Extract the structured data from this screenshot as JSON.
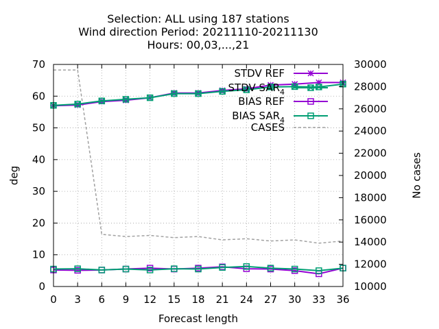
{
  "chart_data": {
    "type": "line",
    "title_lines": [
      "Selection: ALL using   187 stations",
      "Wind direction   Period: 20211110-20211130",
      "Hours:  00,03,...,21"
    ],
    "xlabel": "Forecast length",
    "ylabel": "deg",
    "y2label": "No cases",
    "x": [
      0,
      3,
      6,
      9,
      12,
      15,
      18,
      21,
      24,
      27,
      30,
      33,
      36
    ],
    "xlim": [
      0,
      36
    ],
    "xticks": [
      0,
      3,
      6,
      9,
      12,
      15,
      18,
      21,
      24,
      27,
      30,
      33,
      36
    ],
    "ylim": [
      0,
      70
    ],
    "yticks": [
      0,
      10,
      20,
      30,
      40,
      50,
      60,
      70
    ],
    "y2lim": [
      10000,
      30000
    ],
    "y2ticks": [
      10000,
      12000,
      14000,
      16000,
      18000,
      20000,
      22000,
      24000,
      26000,
      28000,
      30000
    ],
    "grid": true,
    "legend_position": "top-right",
    "series": [
      {
        "name": "STDV REF",
        "axis": "left",
        "color": "#9400d3",
        "marker": "star",
        "dash": "solid",
        "values": [
          57.0,
          57.2,
          58.3,
          58.7,
          59.5,
          61.0,
          61.0,
          61.8,
          62.3,
          63.5,
          63.8,
          64.3,
          64.3
        ]
      },
      {
        "name": "STDV SAR",
        "sub": "4",
        "axis": "left",
        "color": "#009e73",
        "marker": "box-x",
        "dash": "solid",
        "values": [
          57.1,
          57.5,
          58.5,
          59.0,
          59.5,
          60.8,
          60.8,
          61.5,
          62.0,
          62.9,
          63.0,
          62.9,
          63.8
        ]
      },
      {
        "name": "BIAS REF",
        "axis": "left",
        "color": "#9400d3",
        "marker": "square",
        "dash": "solid",
        "values": [
          5.2,
          5.1,
          5.2,
          5.5,
          5.8,
          5.5,
          5.8,
          6.2,
          5.6,
          5.5,
          5.0,
          4.0,
          5.8
        ]
      },
      {
        "name": "BIAS SAR",
        "sub": "4",
        "axis": "left",
        "color": "#009e73",
        "marker": "square",
        "dash": "solid",
        "values": [
          5.5,
          5.6,
          5.2,
          5.5,
          5.2,
          5.6,
          5.5,
          6.0,
          6.3,
          5.8,
          5.5,
          5.0,
          5.8
        ]
      },
      {
        "name": "CASES",
        "axis": "right",
        "color": "#a0a0a0",
        "marker": "none",
        "dash": "dashed",
        "values": [
          29500,
          29500,
          14700,
          14500,
          14600,
          14400,
          14500,
          14200,
          14300,
          14100,
          14200,
          13900,
          14100
        ]
      }
    ]
  }
}
